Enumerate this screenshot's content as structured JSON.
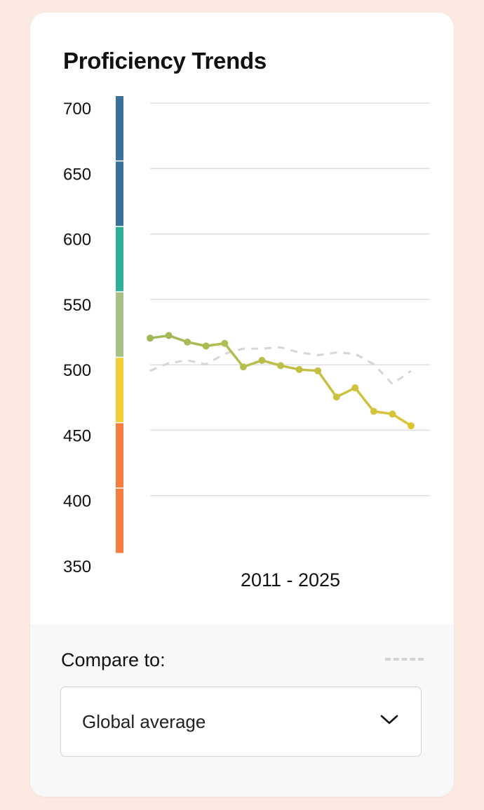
{
  "title": "Proficiency Trends",
  "chart_data": {
    "type": "line",
    "xlabel": "2011 - 2025",
    "ylim": [
      350,
      700
    ],
    "yticks": [
      700,
      650,
      600,
      550,
      500,
      450,
      400,
      350
    ],
    "grid": true,
    "bands": [
      {
        "from": 650,
        "to": 700,
        "color": "#3a7099"
      },
      {
        "from": 600,
        "to": 650,
        "color": "#3a7099"
      },
      {
        "from": 550,
        "to": 600,
        "color": "#2fae98"
      },
      {
        "from": 500,
        "to": 550,
        "color": "#a7c084"
      },
      {
        "from": 450,
        "to": 500,
        "color": "#f3cf36"
      },
      {
        "from": 400,
        "to": 450,
        "color": "#f77c3f"
      },
      {
        "from": 350,
        "to": 400,
        "color": "#f77c3f"
      }
    ],
    "series": [
      {
        "style": "solid",
        "markers": true,
        "color_start": "#9fb95a",
        "color_end": "#dcc435",
        "values": [
          515,
          517,
          512,
          509,
          511,
          493,
          498,
          494,
          491,
          490,
          470,
          477,
          459,
          457,
          448
        ]
      },
      {
        "style": "dashed",
        "markers": false,
        "color": "#d6d6d6",
        "values": [
          490,
          496,
          498,
          495,
          503,
          507,
          507,
          508,
          504,
          502,
          504,
          503,
          495,
          480,
          490
        ]
      }
    ]
  },
  "compare": {
    "label": "Compare to:",
    "selected": "Global average"
  }
}
